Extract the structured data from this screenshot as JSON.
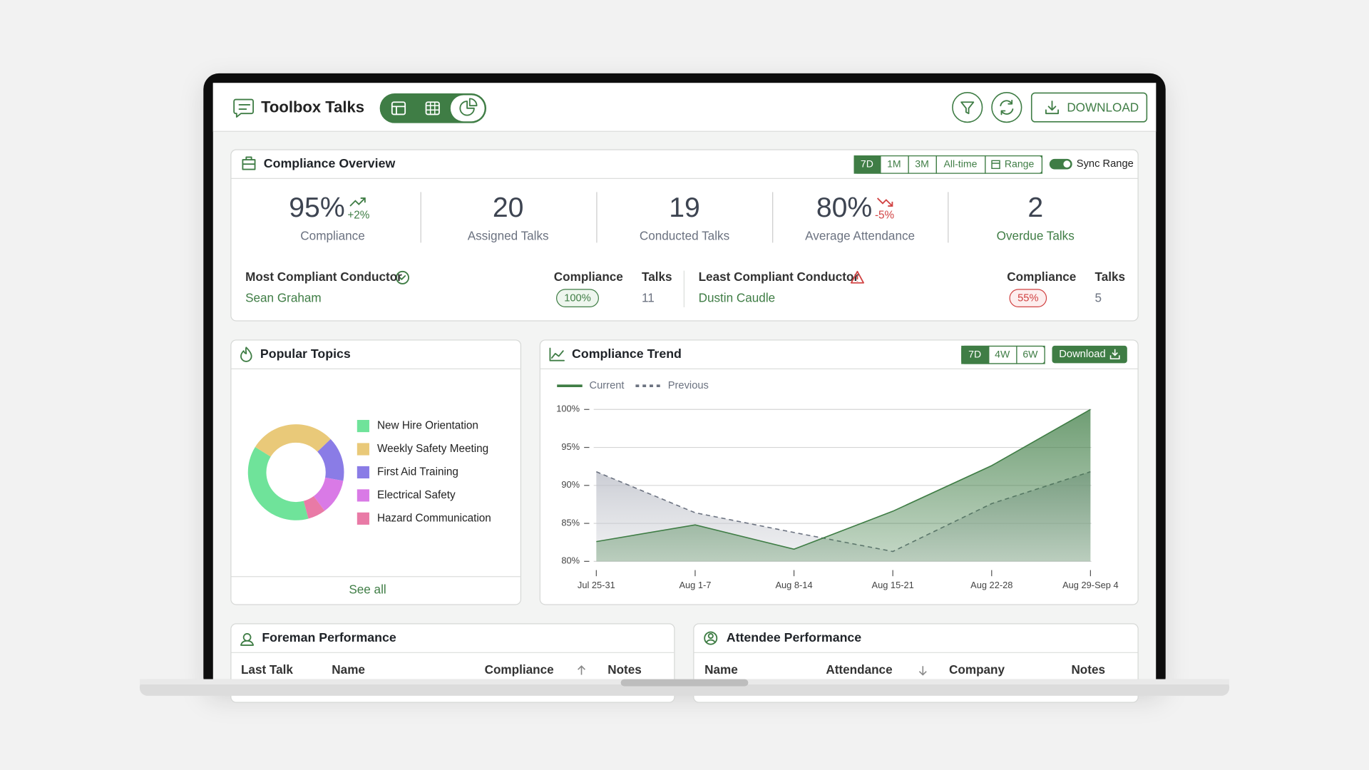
{
  "app": {
    "title": "Toolbox Talks",
    "download": "DOWNLOAD"
  },
  "overview": {
    "title": "Compliance Overview",
    "ranges": [
      "7D",
      "1M",
      "3M",
      "All-time",
      "Range"
    ],
    "sync": "Sync Range",
    "stats": [
      {
        "value": "95%",
        "delta": "+2%",
        "trend": "up",
        "label": "Compliance"
      },
      {
        "value": "20",
        "label": "Assigned Talks"
      },
      {
        "value": "19",
        "label": "Conducted Talks"
      },
      {
        "value": "80%",
        "delta": "-5%",
        "trend": "down",
        "label": "Average Attendance"
      },
      {
        "value": "2",
        "label": "Overdue Talks",
        "highlight": true
      }
    ],
    "most": {
      "label": "Most Compliant Conductor",
      "name": "Sean Graham",
      "compliance_header": "Compliance",
      "compliance": "100%",
      "talks_header": "Talks",
      "talks": "11"
    },
    "least": {
      "label": "Least Compliant Conductor",
      "name": "Dustin Caudle",
      "compliance_header": "Compliance",
      "compliance": "55%",
      "talks_header": "Talks",
      "talks": "5"
    }
  },
  "topics": {
    "see_all": "See all"
  },
  "trend": {
    "ranges": [
      "7D",
      "4W",
      "6W"
    ],
    "download": "Download"
  },
  "chart_data": [
    {
      "type": "pie",
      "title": "Popular Topics",
      "categories": [
        "New Hire Orientation",
        "Weekly Safety Meeting",
        "First Aid Training",
        "Electrical Safety",
        "Hazard Communication"
      ],
      "values": [
        38,
        29,
        15,
        12,
        6
      ],
      "colors": [
        "#6fe39a",
        "#e9c979",
        "#8a7ce6",
        "#d97ae6",
        "#e97aa6"
      ]
    },
    {
      "type": "line",
      "title": "Compliance Trend",
      "categories": [
        "Jul 25-31",
        "Aug 1-7",
        "Aug 8-14",
        "Aug 15-21",
        "Aug 22-28",
        "Aug 29-Sep 4"
      ],
      "series": [
        {
          "name": "Current",
          "color": "#3f7d45",
          "line_style": "solid",
          "values": [
            82.6,
            84.8,
            81.6,
            86.6,
            92.6,
            100
          ]
        },
        {
          "name": "Previous",
          "color": "#6b7280",
          "line_style": "dashed",
          "values": [
            91.8,
            86.4,
            83.8,
            81.3,
            87.6,
            91.8
          ]
        }
      ],
      "ylim": [
        80,
        100
      ],
      "yticks": [
        {
          "value": 80,
          "label": "80%"
        },
        {
          "value": 85,
          "label": "85%"
        },
        {
          "value": 90,
          "label": "90%"
        },
        {
          "value": 95,
          "label": "95%"
        },
        {
          "value": 100,
          "label": "100%"
        }
      ],
      "grid": true,
      "area": true
    }
  ],
  "foreman": {
    "title": "Foreman Performance",
    "columns": [
      "Last Talk",
      "Name",
      "Compliance",
      "Notes"
    ]
  },
  "attendee": {
    "title": "Attendee Performance",
    "columns": [
      "Name",
      "Attendance",
      "Company",
      "Notes"
    ]
  }
}
